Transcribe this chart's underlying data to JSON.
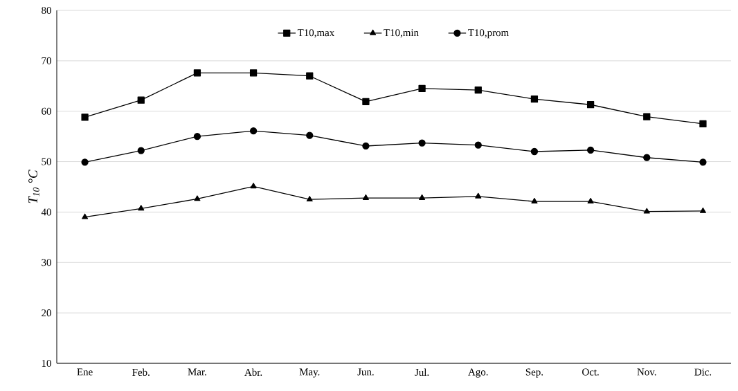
{
  "chart_data": {
    "type": "line",
    "ylabel": "T$_{10}$   °C",
    "categories": [
      "Ene",
      "Feb.",
      "Mar.",
      "Abr.",
      "May.",
      "Jun.",
      "Jul.",
      "Ago.",
      "Sep.",
      "Oct.",
      "Nov.",
      "Dic."
    ],
    "series": [
      {
        "name": "T10,max",
        "color": "#000000",
        "marker": "square",
        "values": [
          58.8,
          62.2,
          67.6,
          67.6,
          67.0,
          61.9,
          64.5,
          64.2,
          62.4,
          61.3,
          58.9,
          57.5
        ]
      },
      {
        "name": "T10,min",
        "color": "#000000",
        "marker": "triangle",
        "values": [
          39.0,
          40.7,
          42.6,
          45.1,
          42.5,
          42.8,
          42.8,
          43.1,
          42.1,
          42.1,
          40.1,
          40.2
        ]
      },
      {
        "name": "T10,prom",
        "color": "#000000",
        "marker": "circle",
        "values": [
          49.9,
          52.2,
          55.0,
          56.1,
          55.2,
          53.1,
          53.7,
          53.3,
          52.0,
          52.3,
          50.8,
          49.9
        ]
      }
    ],
    "ylim": [
      10,
      80
    ],
    "yticks": [
      10,
      20,
      30,
      40,
      50,
      60,
      70,
      80
    ],
    "grid": "y",
    "legend": "top",
    "line_style": "solid"
  }
}
